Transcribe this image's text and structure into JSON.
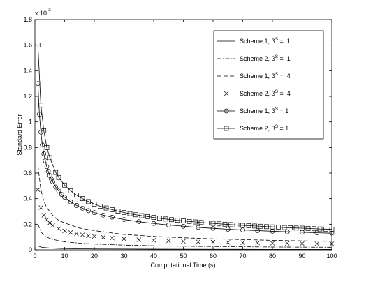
{
  "chart_data": {
    "type": "line",
    "xlabel": "Computational Time (s)",
    "ylabel": "Standard Error",
    "y_multiplier_label": "x 10",
    "y_multiplier_exponent": "-3",
    "xlim": [
      0,
      100
    ],
    "ylim": [
      0,
      1.8
    ],
    "xticks": [
      "0",
      "10",
      "20",
      "30",
      "40",
      "50",
      "60",
      "70",
      "80",
      "90",
      "100"
    ],
    "yticks": [
      "0",
      "0.2",
      "0.4",
      "0.6",
      "0.8",
      "1",
      "1.2",
      "1.4",
      "1.6",
      "1.8"
    ],
    "grid": false,
    "legend_position": "top-right",
    "series": [
      {
        "name": "Scheme 1, β",
        "name_sup": "S",
        "name_value": " = .1",
        "style": "solid",
        "marker": "none",
        "x": [
          1,
          2,
          3,
          4,
          5,
          6,
          8,
          10,
          15,
          20,
          30,
          40,
          50,
          60,
          70,
          80,
          90,
          100
        ],
        "y": [
          0.031,
          0.022,
          0.018,
          0.016,
          0.014,
          0.013,
          0.011,
          0.01,
          0.008,
          0.007,
          0.006,
          0.005,
          0.0045,
          0.004,
          0.0037,
          0.0035,
          0.0033,
          0.0031
        ]
      },
      {
        "name": "Scheme 2, β",
        "name_sup": "S",
        "name_value": " = .1",
        "style": "dashdot",
        "marker": "none",
        "x": [
          1,
          2,
          3,
          4,
          5,
          6,
          8,
          10,
          15,
          20,
          30,
          40,
          50,
          60,
          70,
          80,
          90,
          100
        ],
        "y": [
          0.2,
          0.141,
          0.115,
          0.1,
          0.089,
          0.082,
          0.071,
          0.063,
          0.052,
          0.045,
          0.037,
          0.032,
          0.028,
          0.026,
          0.024,
          0.022,
          0.021,
          0.02
        ]
      },
      {
        "name": "Scheme 1, β",
        "name_sup": "S",
        "name_value": " = .4",
        "style": "dashed",
        "marker": "none",
        "x": [
          1,
          2,
          3,
          4,
          5,
          6,
          8,
          10,
          15,
          20,
          30,
          40,
          50,
          60,
          70,
          80,
          90,
          100
        ],
        "y": [
          0.66,
          0.47,
          0.38,
          0.33,
          0.3,
          0.27,
          0.23,
          0.21,
          0.17,
          0.15,
          0.12,
          0.105,
          0.094,
          0.086,
          0.08,
          0.074,
          0.07,
          0.066
        ]
      },
      {
        "name": "Scheme 2, β",
        "name_sup": "S",
        "name_value": " = .4",
        "style": "none",
        "marker": "x",
        "x": [
          1,
          2,
          3,
          4,
          5,
          6,
          8,
          10,
          12,
          14,
          16,
          18,
          20,
          23,
          26,
          30,
          35,
          40,
          45,
          50,
          55,
          60,
          65,
          70,
          75,
          80,
          85,
          90,
          95,
          100
        ],
        "y": [
          0.47,
          0.33,
          0.27,
          0.235,
          0.21,
          0.19,
          0.165,
          0.148,
          0.135,
          0.125,
          0.117,
          0.11,
          0.105,
          0.098,
          0.092,
          0.086,
          0.079,
          0.074,
          0.07,
          0.066,
          0.063,
          0.06,
          0.058,
          0.056,
          0.054,
          0.052,
          0.051,
          0.049,
          0.048,
          0.047
        ]
      },
      {
        "name": "Scheme 1, β",
        "name_sup": "S",
        "name_value": " = 1",
        "style": "solid",
        "marker": "o",
        "x": [
          1,
          1.5,
          2,
          2.5,
          3,
          3.5,
          4,
          4.5,
          5,
          5.5,
          6,
          7,
          8,
          9,
          10,
          12,
          14,
          16,
          18,
          20,
          23,
          26,
          30,
          35,
          40,
          45,
          50,
          55,
          60,
          65,
          70,
          75,
          80,
          85,
          90,
          95,
          100
        ],
        "y": [
          1.3,
          1.06,
          0.92,
          0.82,
          0.75,
          0.695,
          0.65,
          0.613,
          0.581,
          0.554,
          0.531,
          0.491,
          0.46,
          0.433,
          0.411,
          0.375,
          0.347,
          0.325,
          0.306,
          0.291,
          0.271,
          0.255,
          0.237,
          0.22,
          0.206,
          0.194,
          0.184,
          0.175,
          0.168,
          0.161,
          0.155,
          0.15,
          0.145,
          0.141,
          0.137,
          0.133,
          0.13
        ]
      },
      {
        "name": "Scheme 2, β",
        "name_sup": "S",
        "name_value": " = 1",
        "style": "solid",
        "marker": "square",
        "x": [
          1,
          2,
          3,
          4,
          5,
          7,
          8,
          10,
          12,
          14,
          16,
          18,
          20,
          22,
          24,
          26,
          28,
          30,
          32,
          34,
          36,
          38,
          40,
          42,
          44,
          46,
          48,
          50,
          52,
          54,
          56,
          58,
          60,
          62,
          64,
          66,
          68,
          70,
          72,
          74,
          76,
          78,
          80,
          82,
          84,
          86,
          88,
          90,
          92,
          94,
          96,
          98,
          100
        ],
        "y": [
          1.6,
          1.13,
          0.93,
          0.8,
          0.72,
          0.605,
          0.566,
          0.506,
          0.462,
          0.428,
          0.4,
          0.377,
          0.358,
          0.341,
          0.327,
          0.314,
          0.302,
          0.292,
          0.283,
          0.274,
          0.267,
          0.26,
          0.253,
          0.247,
          0.241,
          0.236,
          0.231,
          0.226,
          0.222,
          0.218,
          0.214,
          0.21,
          0.207,
          0.203,
          0.2,
          0.197,
          0.194,
          0.191,
          0.189,
          0.186,
          0.184,
          0.181,
          0.179,
          0.177,
          0.174,
          0.172,
          0.17,
          0.169,
          0.167,
          0.165,
          0.163,
          0.162,
          0.16
        ]
      }
    ]
  }
}
